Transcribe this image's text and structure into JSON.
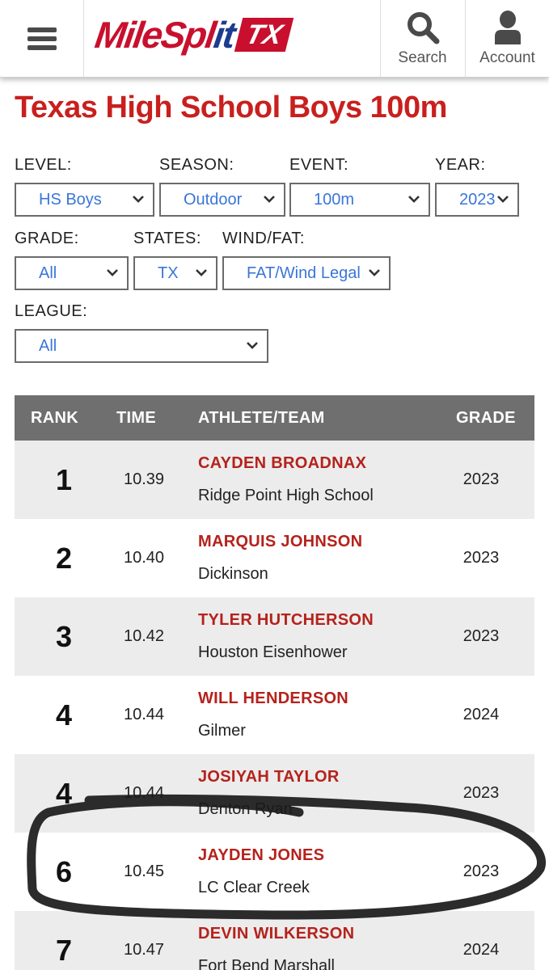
{
  "header": {
    "logo_main": "MileSpl",
    "logo_split": "it",
    "logo_state": "TX",
    "search_label": "Search",
    "account_label": "Account"
  },
  "page": {
    "title": "Texas High School Boys 100m"
  },
  "filters": {
    "level": {
      "label": "LEVEL:",
      "value": "HS Boys"
    },
    "season": {
      "label": "SEASON:",
      "value": "Outdoor"
    },
    "event": {
      "label": "EVENT:",
      "value": "100m"
    },
    "year": {
      "label": "YEAR:",
      "value": "2023"
    },
    "grade": {
      "label": "GRADE:",
      "value": "All"
    },
    "states": {
      "label": "STATES:",
      "value": "TX"
    },
    "wind": {
      "label": "WIND/FAT:",
      "value": "FAT/Wind Legal"
    },
    "league": {
      "label": "LEAGUE:",
      "value": "All"
    }
  },
  "table": {
    "headers": {
      "rank": "RANK",
      "time": "TIME",
      "athlete": "ATHLETE/TEAM",
      "grade": "GRADE"
    },
    "rows": [
      {
        "rank": "1",
        "time": "10.39",
        "athlete": "CAYDEN BROADNAX",
        "team": "Ridge Point High School",
        "grade": "2023"
      },
      {
        "rank": "2",
        "time": "10.40",
        "athlete": "MARQUIS JOHNSON",
        "team": "Dickinson",
        "grade": "2023"
      },
      {
        "rank": "3",
        "time": "10.42",
        "athlete": "TYLER HUTCHERSON",
        "team": "Houston Eisenhower",
        "grade": "2023"
      },
      {
        "rank": "4",
        "time": "10.44",
        "athlete": "WILL HENDERSON",
        "team": "Gilmer",
        "grade": "2024"
      },
      {
        "rank": "4",
        "time": "10.44",
        "athlete": "JOSIYAH TAYLOR",
        "team": "Denton Ryan",
        "grade": "2023"
      },
      {
        "rank": "6",
        "time": "10.45",
        "athlete": "JAYDEN JONES",
        "team": "LC Clear Creek",
        "grade": "2023"
      },
      {
        "rank": "7",
        "time": "10.47",
        "athlete": "DEVIN WILKERSON",
        "team": "Fort Bend Marshall",
        "grade": "2024"
      }
    ]
  },
  "colors": {
    "brand_red": "#c8102e",
    "brand_blue": "#1d3c8f",
    "select_text": "#3a76d8",
    "header_gray": "#6f6f6f"
  }
}
